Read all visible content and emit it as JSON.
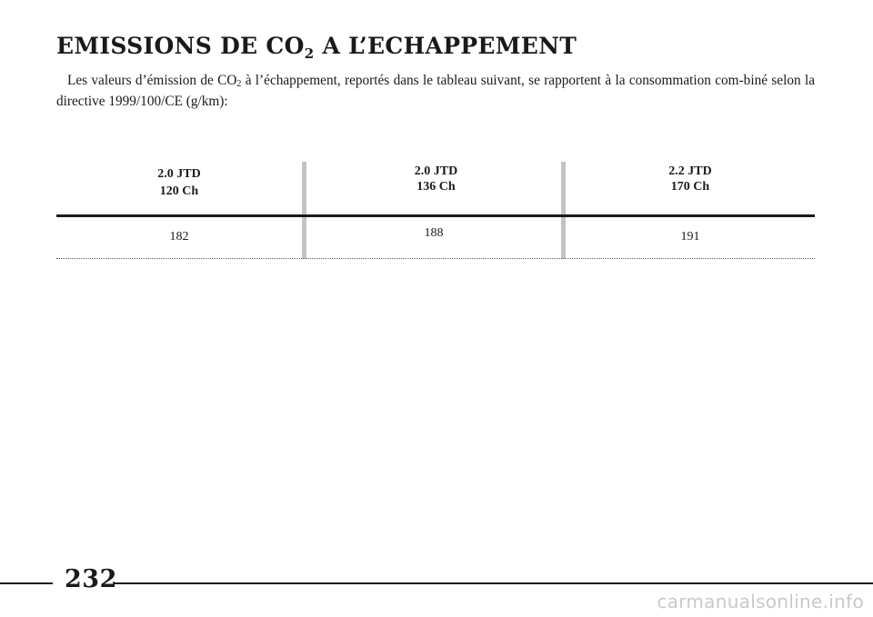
{
  "heading": {
    "part1": "EMISSIONS DE CO",
    "sub": "2",
    "part2": " A L’ECHAPPEMENT"
  },
  "intro": {
    "part1": "Les valeurs d’émission de CO",
    "sub": "2",
    "part2": " à l’échappement, reportés dans le tableau suivant, se rapportent à la consommation com-biné selon la directive 1999/100/CE (g/km):"
  },
  "table": {
    "columns": [
      {
        "model": "2.0 JTD",
        "power": "120 Ch",
        "value": "182"
      },
      {
        "model": "2.0 JTD",
        "power": "136 Ch",
        "value": "188"
      },
      {
        "model": "2.2 JTD",
        "power": "170 Ch",
        "value": "191"
      }
    ]
  },
  "page_number": "232",
  "watermark": "carmanualsonline.info"
}
